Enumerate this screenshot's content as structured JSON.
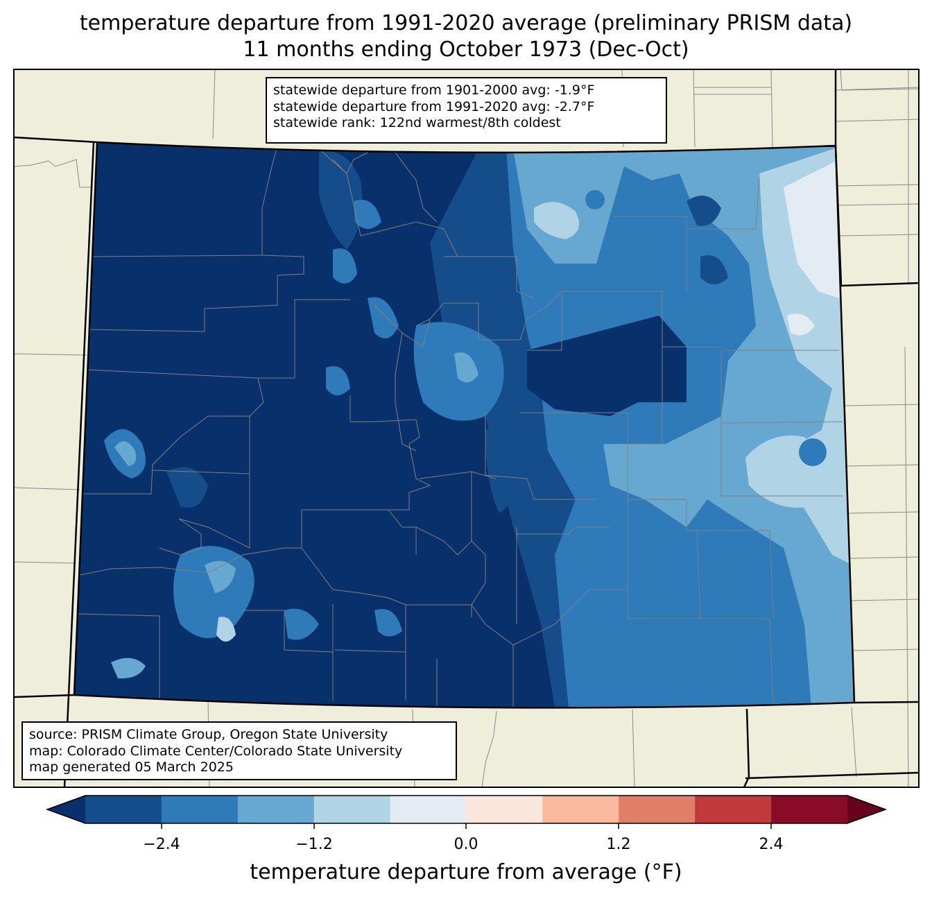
{
  "title": {
    "line1": "temperature departure from 1991-2020 average (preliminary PRISM data)",
    "line2": "11 months ending October 1973 (Dec-Oct)"
  },
  "stats": {
    "line1": "statewide departure from 1901-2000 avg: -1.9°F",
    "line2": "statewide departure from 1991-2020 avg: -2.7°F",
    "line3": "statewide rank: 122nd warmest/8th coldest"
  },
  "source": {
    "line1": "source: PRISM Climate Group, Oregon State University",
    "line2": "map: Colorado Climate Center/Colorado State University",
    "line3": "map generated 05 March 2025"
  },
  "colorbar": {
    "label": "temperature departure from average (°F)",
    "ticks": [
      "−2.4",
      "−1.2",
      "0.0",
      "1.2",
      "2.4"
    ],
    "colors": [
      "#08306b",
      "#154c8a",
      "#2f7ab9",
      "#67a8d0",
      "#b0d3e6",
      "#e4ecf3",
      "#fbe6dc",
      "#f8b99c",
      "#e07e68",
      "#c13b3b",
      "#8a0b25",
      "#67001f"
    ]
  },
  "map_colors": {
    "land": "#efeedb",
    "border": "#000000",
    "county_lines": "#808080"
  }
}
